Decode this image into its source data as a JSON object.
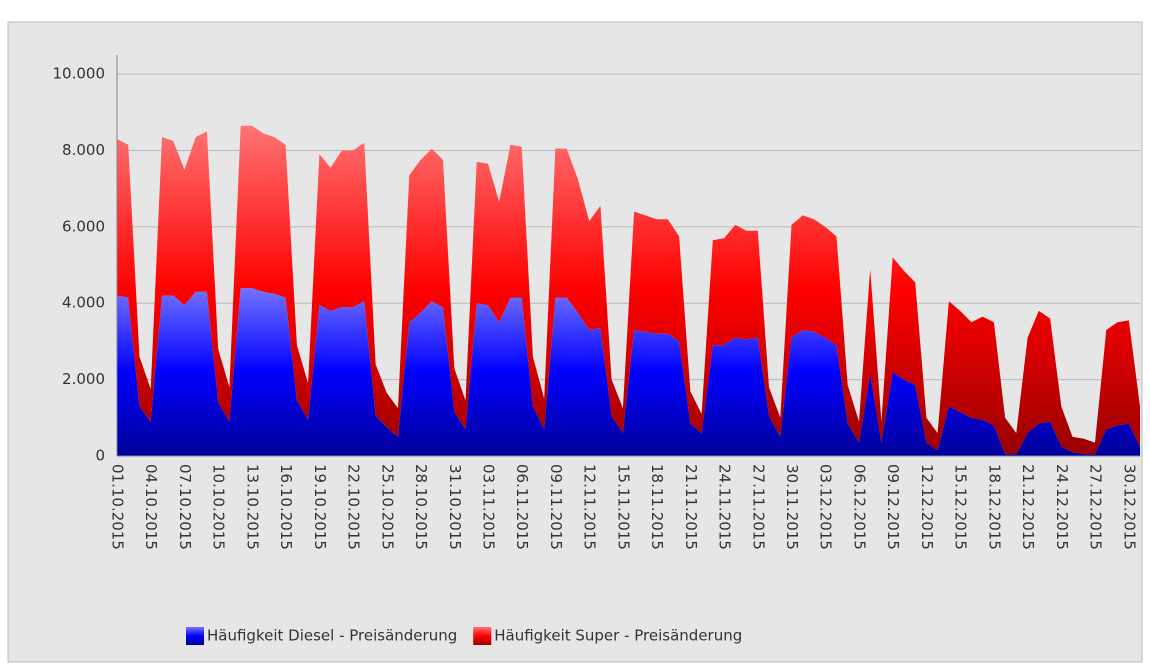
{
  "chart_data": {
    "type": "stacked-area",
    "categories": [
      "01.10.2015",
      null,
      null,
      "04.10.2015",
      null,
      null,
      "07.10.2015",
      null,
      null,
      "10.10.2015",
      null,
      null,
      "13.10.2015",
      null,
      null,
      "16.10.2015",
      null,
      null,
      "19.10.2015",
      null,
      null,
      "22.10.2015",
      null,
      null,
      "25.10.2015",
      null,
      null,
      "28.10.2015",
      null,
      null,
      "31.10.2015",
      null,
      null,
      "03.11.2015",
      null,
      null,
      "06.11.2015",
      null,
      null,
      "09.11.2015",
      null,
      null,
      "12.11.2015",
      null,
      null,
      "15.11.2015",
      null,
      null,
      "18.11.2015",
      null,
      null,
      "21.11.2015",
      null,
      null,
      "24.11.2015",
      null,
      null,
      "27.11.2015",
      null,
      null,
      "30.11.2015",
      null,
      null,
      "03.12.2015",
      null,
      null,
      "06.12.2015",
      null,
      null,
      "09.12.2015",
      null,
      null,
      "12.12.2015",
      null,
      null,
      "15.12.2015",
      null,
      null,
      "18.12.2015",
      null,
      null,
      "21.12.2015",
      null,
      null,
      "24.12.2015",
      null,
      null,
      "27.12.2015",
      null,
      null,
      "30.12.2015",
      null
    ],
    "series": [
      {
        "name": "Häufigkeit Diesel - Preisänderung",
        "color": "#0000ff",
        "values": [
          4200,
          4150,
          1300,
          900,
          4200,
          4200,
          3950,
          4300,
          4300,
          1400,
          900,
          4400,
          4400,
          4300,
          4250,
          4150,
          1450,
          950,
          3950,
          3800,
          3900,
          3900,
          4050,
          1050,
          750,
          500,
          3500,
          3750,
          4050,
          3900,
          1150,
          700,
          4000,
          3950,
          3500,
          4150,
          4150,
          1300,
          700,
          4150,
          4150,
          3750,
          3300,
          3350,
          1050,
          600,
          3300,
          3250,
          3200,
          3200,
          3000,
          850,
          600,
          2900,
          2900,
          3100,
          3050,
          3100,
          1050,
          500,
          3100,
          3300,
          3250,
          3100,
          2900,
          850,
          350,
          2150,
          350,
          2200,
          2000,
          1850,
          350,
          150,
          1300,
          1150,
          1000,
          950,
          800,
          50,
          50,
          600,
          850,
          900,
          250,
          100,
          50,
          50,
          700,
          800,
          850,
          250
        ]
      },
      {
        "name": "Häufigkeit Super - Preisänderung",
        "color": "#ff0000",
        "values": [
          4100,
          4000,
          1300,
          850,
          4150,
          4050,
          3550,
          4050,
          4200,
          1400,
          900,
          4250,
          4250,
          4150,
          4100,
          4000,
          1450,
          950,
          3950,
          3750,
          4100,
          4100,
          4150,
          1350,
          900,
          750,
          3850,
          4000,
          4000,
          3850,
          1150,
          750,
          3700,
          3700,
          3150,
          4000,
          3950,
          1300,
          800,
          3900,
          3900,
          3500,
          2850,
          3200,
          950,
          650,
          3100,
          3050,
          3000,
          3000,
          2750,
          850,
          500,
          2750,
          2800,
          2950,
          2850,
          2800,
          750,
          500,
          2950,
          3000,
          2950,
          2900,
          2850,
          1000,
          550,
          2750,
          550,
          3000,
          2850,
          2700,
          650,
          450,
          2750,
          2650,
          2500,
          2700,
          2700,
          950,
          550,
          2500,
          2950,
          2700,
          1050,
          400,
          400,
          300,
          2600,
          2700,
          2700,
          1050
        ]
      }
    ],
    "ylim": [
      0,
      10500
    ],
    "yticks": [
      0,
      {
        "value": 2000,
        "label": "2.000"
      },
      {
        "value": 4000,
        "label": "4.000"
      },
      {
        "value": 6000,
        "label": "6.000"
      },
      {
        "value": 8000,
        "label": "8.000"
      },
      {
        "value": 10000,
        "label": "10.000"
      }
    ],
    "grid": true,
    "stacked": true,
    "legend": "bottom"
  }
}
